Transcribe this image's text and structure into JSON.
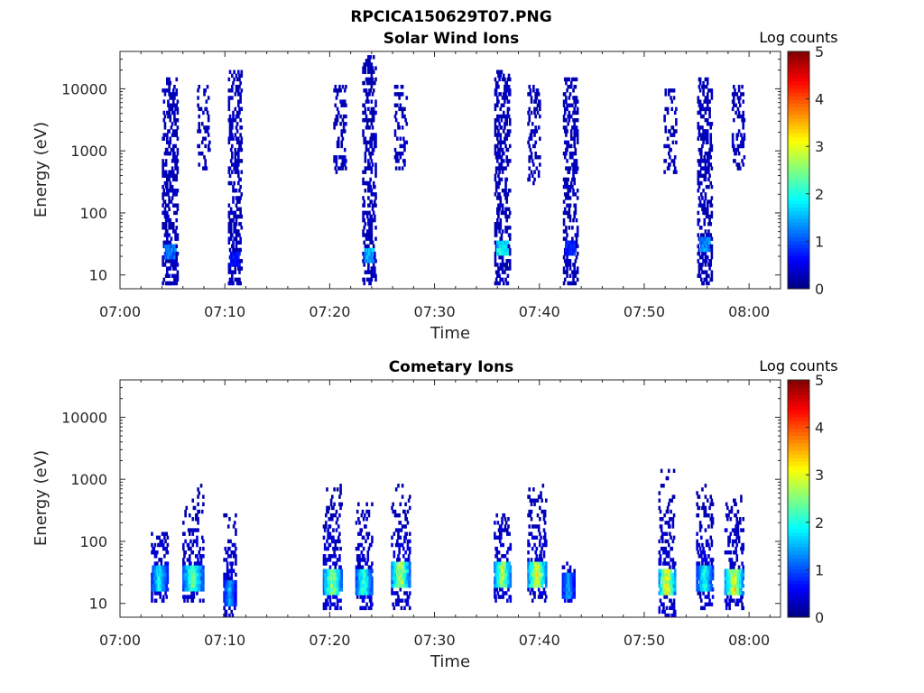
{
  "figure": {
    "title": "RPCICA150629T07.PNG"
  },
  "chart_data": [
    {
      "type": "heatmap",
      "title": "Solar Wind Ions",
      "xlabel": "Time",
      "ylabel": "Energy (eV)",
      "xticks": [
        "07:00",
        "07:10",
        "07:20",
        "07:30",
        "07:40",
        "07:50",
        "08:00"
      ],
      "xlim_minutes": [
        0,
        63
      ],
      "yscale": "log",
      "yticks": [
        "10",
        "100",
        "1000",
        "10000"
      ],
      "ylim": [
        6,
        40000
      ],
      "colorbar": {
        "label": "Log counts",
        "ticks": [
          "0",
          "1",
          "2",
          "3",
          "4",
          "5"
        ],
        "range": [
          0,
          5
        ],
        "colormap": "jet"
      },
      "bursts": [
        {
          "t": 4.8,
          "emin": 7,
          "emax": 15000,
          "width": 1.5,
          "low_energy": 25,
          "low_peak": 1.4
        },
        {
          "t": 8.0,
          "emin": 500,
          "emax": 12000,
          "width": 1.2,
          "low_energy": 0,
          "low_peak": 0
        },
        {
          "t": 11.0,
          "emin": 7,
          "emax": 20000,
          "width": 1.3,
          "low_energy": 18,
          "low_peak": 0.8
        },
        {
          "t": 21.0,
          "emin": 400,
          "emax": 12000,
          "width": 1.2,
          "low_energy": 0,
          "low_peak": 0
        },
        {
          "t": 23.8,
          "emin": 7,
          "emax": 35000,
          "width": 1.3,
          "low_energy": 22,
          "low_peak": 1.8
        },
        {
          "t": 26.8,
          "emin": 500,
          "emax": 12000,
          "width": 1.2,
          "low_energy": 0,
          "low_peak": 0
        },
        {
          "t": 36.5,
          "emin": 7,
          "emax": 20000,
          "width": 1.5,
          "low_energy": 28,
          "low_peak": 2.2
        },
        {
          "t": 39.5,
          "emin": 300,
          "emax": 12000,
          "width": 1.2,
          "low_energy": 0,
          "low_peak": 0
        },
        {
          "t": 43.0,
          "emin": 7,
          "emax": 15000,
          "width": 1.4,
          "low_energy": 28,
          "low_peak": 1.0
        },
        {
          "t": 52.5,
          "emin": 400,
          "emax": 10000,
          "width": 1.2,
          "low_energy": 0,
          "low_peak": 0
        },
        {
          "t": 55.8,
          "emin": 7,
          "emax": 15000,
          "width": 1.4,
          "low_energy": 30,
          "low_peak": 1.6
        },
        {
          "t": 59.0,
          "emin": 500,
          "emax": 12000,
          "width": 1.2,
          "low_energy": 0,
          "low_peak": 0
        }
      ]
    },
    {
      "type": "heatmap",
      "title": "Cometary Ions",
      "xlabel": "Time",
      "ylabel": "Energy (eV)",
      "xticks": [
        "07:00",
        "07:10",
        "07:20",
        "07:30",
        "07:40",
        "07:50",
        "08:00"
      ],
      "xlim_minutes": [
        0,
        63
      ],
      "yscale": "log",
      "yticks": [
        "10",
        "100",
        "1000",
        "10000"
      ],
      "ylim": [
        6,
        40000
      ],
      "colorbar": {
        "label": "Log counts",
        "ticks": [
          "0",
          "1",
          "2",
          "3",
          "4",
          "5"
        ],
        "range": [
          0,
          5
        ],
        "colormap": "jet"
      },
      "bursts": [
        {
          "t": 3.8,
          "emin": 10,
          "emax": 150,
          "width": 1.6,
          "core": 25,
          "peak": 2.2
        },
        {
          "t": 7.0,
          "emin": 10,
          "emax": 800,
          "width": 2.0,
          "core": 25,
          "peak": 2.8
        },
        {
          "t": 10.5,
          "emin": 6,
          "emax": 300,
          "width": 1.2,
          "core": 15,
          "peak": 1.8
        },
        {
          "t": 20.3,
          "emin": 8,
          "emax": 900,
          "width": 1.8,
          "core": 22,
          "peak": 3.2
        },
        {
          "t": 23.3,
          "emin": 8,
          "emax": 400,
          "width": 1.6,
          "core": 22,
          "peak": 2.6
        },
        {
          "t": 26.8,
          "emin": 8,
          "emax": 900,
          "width": 1.8,
          "core": 28,
          "peak": 3.4
        },
        {
          "t": 36.5,
          "emin": 10,
          "emax": 300,
          "width": 1.6,
          "core": 30,
          "peak": 3.4
        },
        {
          "t": 39.8,
          "emin": 10,
          "emax": 900,
          "width": 1.8,
          "core": 30,
          "peak": 3.6
        },
        {
          "t": 42.8,
          "emin": 10,
          "emax": 50,
          "width": 1.2,
          "core": 20,
          "peak": 1.8
        },
        {
          "t": 52.2,
          "emin": 6,
          "emax": 1400,
          "width": 1.6,
          "core": 22,
          "peak": 3.8
        },
        {
          "t": 55.8,
          "emin": 8,
          "emax": 900,
          "width": 1.6,
          "core": 25,
          "peak": 2.4
        },
        {
          "t": 58.6,
          "emin": 8,
          "emax": 600,
          "width": 1.8,
          "core": 22,
          "peak": 3.6
        }
      ]
    }
  ]
}
